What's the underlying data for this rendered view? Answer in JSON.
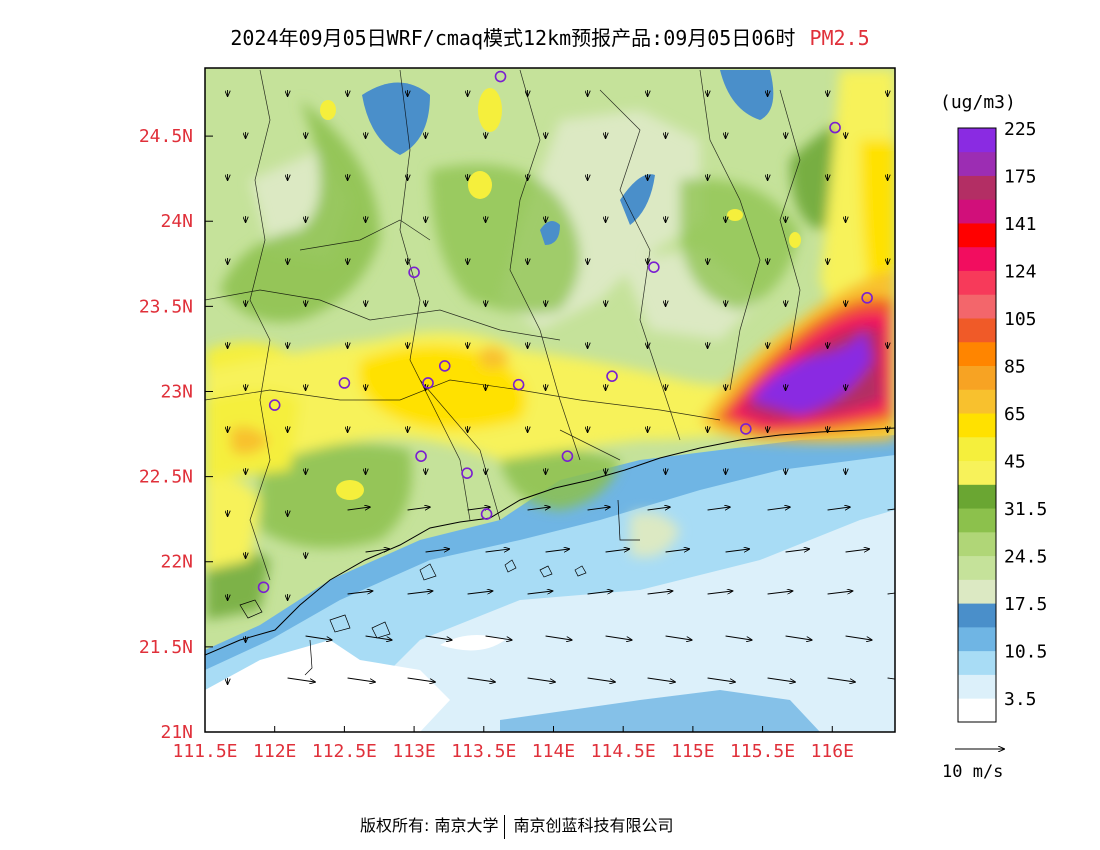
{
  "title": {
    "main": "2024年09月05日WRF/cmaq模式12km预报产品:09月05日06时",
    "pollutant": "PM2.5"
  },
  "colorbar": {
    "unit": "(ug/m3)",
    "colors": [
      "#ffffff",
      "#dcf0fa",
      "#a8dcf5",
      "#6fb5e4",
      "#4a8fca",
      "#dce9c3",
      "#c5e29a",
      "#b0d677",
      "#8cc14c",
      "#6aa632",
      "#f7f25a",
      "#f5ef3c",
      "#ffe100",
      "#f8c12e",
      "#f7a323",
      "#ff8500",
      "#f05a28",
      "#f3666b",
      "#f73a5a",
      "#f20d5f",
      "#ff0000",
      "#d10f7a",
      "#b32e64",
      "#9c2db3",
      "#8a2be2"
    ],
    "labels": [
      {
        "text": "3.5",
        "boundary": 1
      },
      {
        "text": "10.5",
        "boundary": 3
      },
      {
        "text": "17.5",
        "boundary": 5
      },
      {
        "text": "24.5",
        "boundary": 7
      },
      {
        "text": "31.5",
        "boundary": 9
      },
      {
        "text": "45",
        "boundary": 11
      },
      {
        "text": "65",
        "boundary": 13
      },
      {
        "text": "85",
        "boundary": 15
      },
      {
        "text": "105",
        "boundary": 17
      },
      {
        "text": "124",
        "boundary": 19
      },
      {
        "text": "141",
        "boundary": 21
      },
      {
        "text": "175",
        "boundary": 23
      },
      {
        "text": "225",
        "boundary": 25
      }
    ]
  },
  "axes": {
    "lon_range": [
      111.5,
      116.45
    ],
    "lat_range": [
      21.0,
      24.9
    ],
    "lon_ticks": [
      {
        "value": 111.5,
        "label": "111.5E"
      },
      {
        "value": 112.0,
        "label": "112E"
      },
      {
        "value": 112.5,
        "label": "112.5E"
      },
      {
        "value": 113.0,
        "label": "113E"
      },
      {
        "value": 113.5,
        "label": "113.5E"
      },
      {
        "value": 114.0,
        "label": "114E"
      },
      {
        "value": 114.5,
        "label": "114.5E"
      },
      {
        "value": 115.0,
        "label": "115E"
      },
      {
        "value": 115.5,
        "label": "115.5E"
      },
      {
        "value": 116.0,
        "label": "116E"
      }
    ],
    "lat_ticks": [
      {
        "value": 21.0,
        "label": "21N"
      },
      {
        "value": 21.5,
        "label": "21.5N"
      },
      {
        "value": 22.0,
        "label": "22N"
      },
      {
        "value": 22.5,
        "label": "22.5N"
      },
      {
        "value": 23.0,
        "label": "23N"
      },
      {
        "value": 23.5,
        "label": "23.5N"
      },
      {
        "value": 24.0,
        "label": "24N"
      },
      {
        "value": 24.5,
        "label": "24.5N"
      }
    ]
  },
  "wind_legend": {
    "label": "10 m/s"
  },
  "stations": [
    {
      "lon": 113.62,
      "lat": 24.85
    },
    {
      "lon": 116.02,
      "lat": 24.55
    },
    {
      "lon": 113.0,
      "lat": 23.7
    },
    {
      "lon": 114.72,
      "lat": 23.73
    },
    {
      "lon": 116.25,
      "lat": 23.55
    },
    {
      "lon": 113.22,
      "lat": 23.15
    },
    {
      "lon": 112.5,
      "lat": 23.05
    },
    {
      "lon": 113.1,
      "lat": 23.05
    },
    {
      "lon": 113.75,
      "lat": 23.04
    },
    {
      "lon": 114.42,
      "lat": 23.09
    },
    {
      "lon": 112.0,
      "lat": 22.92
    },
    {
      "lon": 113.05,
      "lat": 22.62
    },
    {
      "lon": 114.1,
      "lat": 22.62
    },
    {
      "lon": 113.38,
      "lat": 22.52
    },
    {
      "lon": 113.52,
      "lat": 22.28
    },
    {
      "lon": 111.92,
      "lat": 21.85
    },
    {
      "lon": 115.38,
      "lat": 22.78
    }
  ],
  "footer": {
    "copyright": "版权所有: 南京大学",
    "partner": "南京创蓝科技有限公司"
  }
}
